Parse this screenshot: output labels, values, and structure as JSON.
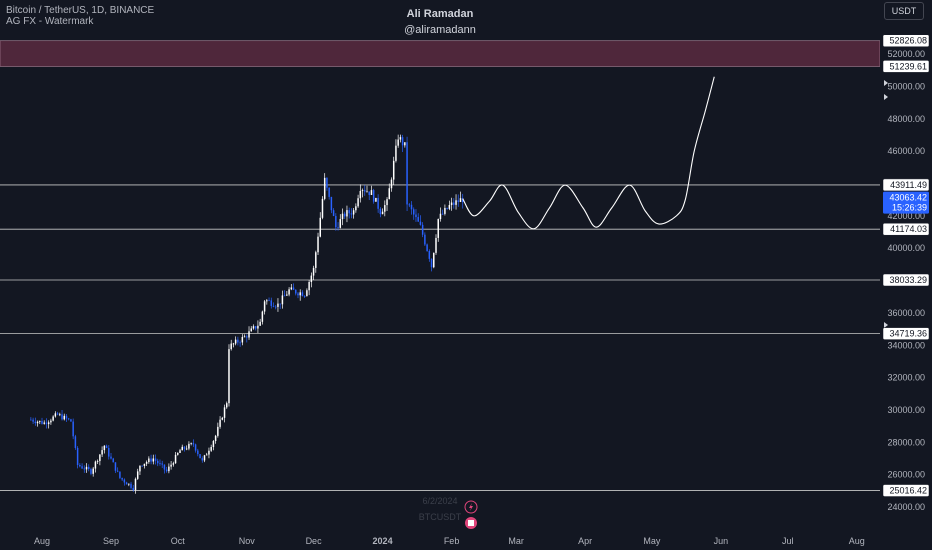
{
  "header": {
    "symbol_line": "Bitcoin / TetherUS, 1D, BINANCE",
    "indicator_line": "AG FX - Watermark"
  },
  "watermark": {
    "author": "Ali Ramadan",
    "handle": "@aliramadann"
  },
  "currency_button": "USDT",
  "bottom_watermark": {
    "date": "6/2/2024",
    "symbol": "BTCUSDT"
  },
  "colors": {
    "background": "#131722",
    "up": "#ffffff",
    "down": "#2962ff",
    "zone": "#5a2a40",
    "level_line": "#c8c8c8",
    "current_price": "#2962ff"
  },
  "chart_data": {
    "type": "candlestick",
    "y_ticks": [
      "52000.00",
      "50000.00",
      "48000.00",
      "46000.00",
      "42000.00",
      "40000.00",
      "36000.00",
      "34000.00",
      "32000.00",
      "30000.00",
      "28000.00",
      "26000.00",
      "24000.00"
    ],
    "x_ticks": [
      "Aug",
      "Sep",
      "Oct",
      "Nov",
      "Dec",
      "2024",
      "Feb",
      "Mar",
      "Apr",
      "May",
      "Jun",
      "Jul",
      "Aug"
    ],
    "resistance_zone": {
      "low": 51239.61,
      "high": 52826.08,
      "labels": [
        "52826.08",
        "51239.61"
      ]
    },
    "levels": [
      {
        "label": "43911.49",
        "value": 43911.49
      },
      {
        "label": "41174.03",
        "value": 41174.03
      },
      {
        "label": "38033.29",
        "value": 38033.29
      },
      {
        "label": "34719.36",
        "value": 34719.36
      },
      {
        "label": "25016.42",
        "value": 25016.42
      }
    ],
    "current_price": {
      "value": "43063.42",
      "countdown": "15:26:39"
    },
    "price_series": [
      [
        "2023-07-27",
        29400
      ],
      [
        "2023-08-02",
        29200
      ],
      [
        "2023-08-08",
        29700
      ],
      [
        "2023-08-14",
        29300
      ],
      [
        "2023-08-17",
        26600
      ],
      [
        "2023-08-23",
        26200
      ],
      [
        "2023-08-29",
        27800
      ],
      [
        "2023-09-05",
        25800
      ],
      [
        "2023-09-11",
        25200
      ],
      [
        "2023-09-14",
        26600
      ],
      [
        "2023-09-20",
        27000
      ],
      [
        "2023-09-26",
        26200
      ],
      [
        "2023-10-02",
        27500
      ],
      [
        "2023-10-08",
        27900
      ],
      [
        "2023-10-12",
        26800
      ],
      [
        "2023-10-18",
        28400
      ],
      [
        "2023-10-23",
        30500
      ],
      [
        "2023-10-24",
        33900
      ],
      [
        "2023-10-31",
        34500
      ],
      [
        "2023-11-07",
        35400
      ],
      [
        "2023-11-09",
        36800
      ],
      [
        "2023-11-15",
        36500
      ],
      [
        "2023-11-20",
        37400
      ],
      [
        "2023-11-27",
        37200
      ],
      [
        "2023-12-01",
        38700
      ],
      [
        "2023-12-04",
        41900
      ],
      [
        "2023-12-06",
        44200
      ],
      [
        "2023-12-11",
        41300
      ],
      [
        "2023-12-15",
        42100
      ],
      [
        "2023-12-19",
        42300
      ],
      [
        "2023-12-22",
        43800
      ],
      [
        "2023-12-27",
        43400
      ],
      [
        "2023-12-31",
        42300
      ],
      [
        "2024-01-03",
        42800
      ],
      [
        "2024-01-08",
        46900
      ],
      [
        "2024-01-11",
        46300
      ],
      [
        "2024-01-12",
        42800
      ],
      [
        "2024-01-18",
        41300
      ],
      [
        "2024-01-22",
        39500
      ],
      [
        "2024-01-23",
        38900
      ],
      [
        "2024-01-26",
        41800
      ],
      [
        "2024-01-31",
        42600
      ],
      [
        "2024-02-06",
        43063
      ]
    ],
    "projection_path": [
      [
        "2024-02-06",
        43063
      ],
      [
        "2024-02-11",
        42000
      ],
      [
        "2024-02-18",
        42900
      ],
      [
        "2024-02-24",
        43900
      ],
      [
        "2024-03-02",
        42200
      ],
      [
        "2024-03-09",
        41200
      ],
      [
        "2024-03-16",
        42500
      ],
      [
        "2024-03-23",
        43900
      ],
      [
        "2024-03-31",
        42500
      ],
      [
        "2024-04-06",
        41300
      ],
      [
        "2024-04-13",
        42500
      ],
      [
        "2024-04-21",
        43900
      ],
      [
        "2024-04-28",
        42300
      ],
      [
        "2024-05-04",
        41500
      ],
      [
        "2024-05-12",
        42000
      ],
      [
        "2024-05-16",
        43000
      ],
      [
        "2024-05-20",
        46000
      ],
      [
        "2024-05-25",
        48500
      ],
      [
        "2024-05-29",
        50600
      ]
    ]
  }
}
